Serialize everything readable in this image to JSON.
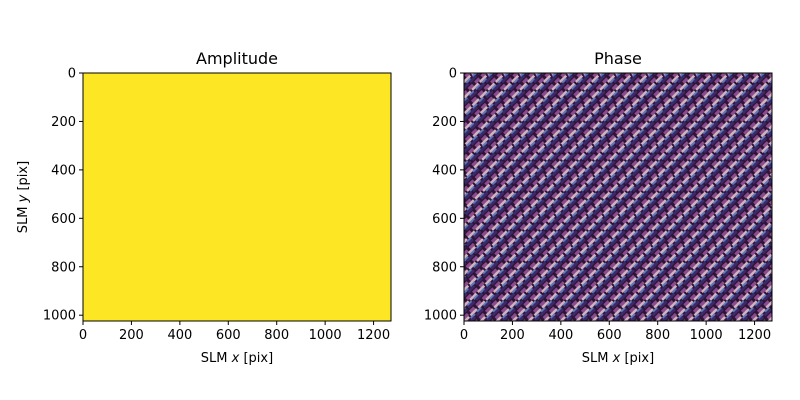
{
  "chart_data": [
    {
      "type": "heatmap",
      "title": "Amplitude",
      "xlabel_prefix": "SLM ",
      "xlabel_var": "x",
      "xlabel_suffix": " [pix]",
      "ylabel_prefix": "SLM ",
      "ylabel_var": "y",
      "ylabel_suffix": " [pix]",
      "xlim": [
        0,
        1272
      ],
      "ylim": [
        1024,
        0
      ],
      "xticks": [
        0,
        200,
        400,
        600,
        800,
        1000,
        1200
      ],
      "yticks": [
        0,
        200,
        400,
        600,
        800,
        1000
      ],
      "fill": "uniform",
      "fill_color": "#fde725",
      "colormap": "viridis"
    },
    {
      "type": "heatmap",
      "title": "Phase",
      "xlabel_prefix": "SLM ",
      "xlabel_var": "x",
      "xlabel_suffix": " [pix]",
      "xlim": [
        0,
        1272
      ],
      "ylim": [
        1024,
        0
      ],
      "xticks": [
        0,
        200,
        400,
        600,
        800,
        1000,
        1200
      ],
      "yticks": [
        0,
        200,
        400,
        600,
        800,
        1000
      ],
      "fill": "diagonal-stripe-pattern",
      "colormap": "twilight",
      "pattern_colors": [
        "#2f1436",
        "#8a4c8f",
        "#d3b2c0",
        "#5d7ab9",
        "#3b2a6b"
      ]
    }
  ]
}
